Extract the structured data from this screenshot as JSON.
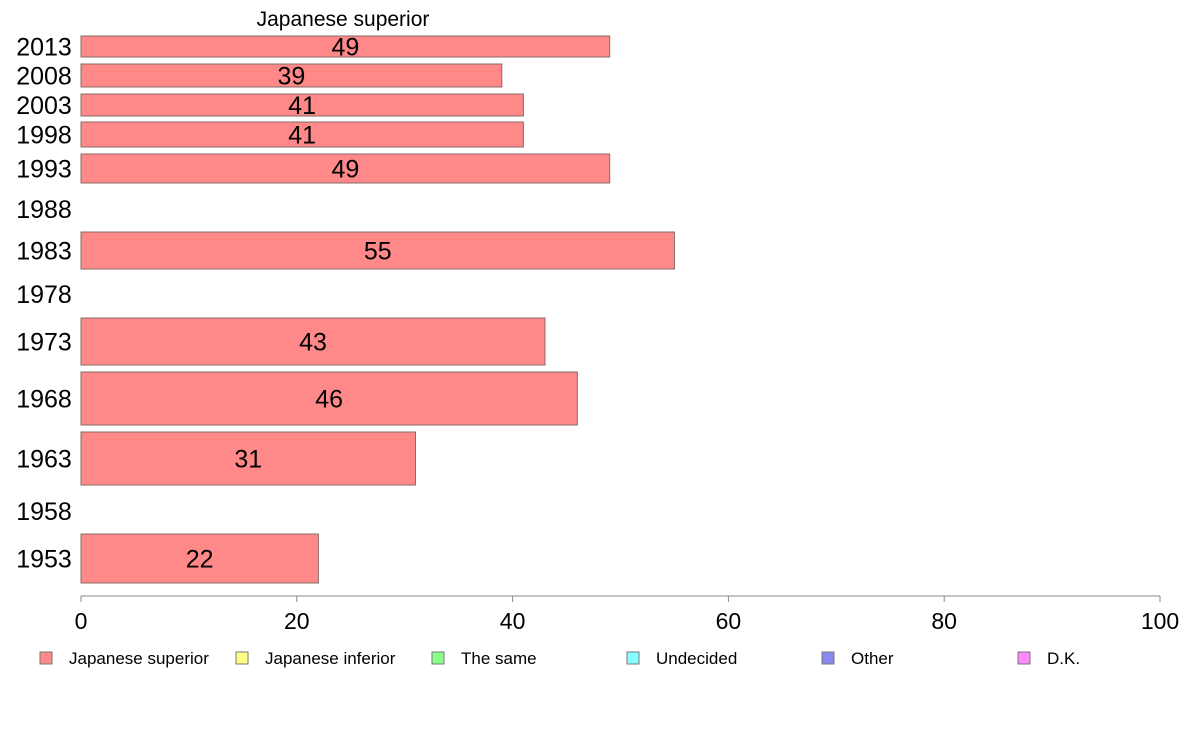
{
  "chart_data": {
    "type": "bar",
    "orientation": "horizontal",
    "title": "Japanese superior",
    "xlim": [
      0,
      100
    ],
    "x_ticks": [
      0,
      20,
      40,
      60,
      80,
      100
    ],
    "categories": [
      "2013",
      "2008",
      "2003",
      "1998",
      "1993",
      "1988",
      "1983",
      "1978",
      "1973",
      "1968",
      "1963",
      "1958",
      "1953"
    ],
    "series": [
      {
        "name": "Japanese superior",
        "color": "#ff8888",
        "values": [
          49,
          39,
          41,
          41,
          49,
          null,
          55,
          null,
          43,
          46,
          31,
          null,
          22
        ],
        "labels": [
          "49",
          "39",
          "41",
          "41",
          "49",
          null,
          "55",
          null,
          "43",
          "46",
          "31",
          null,
          "22"
        ]
      }
    ],
    "legend": [
      {
        "name": "Japanese superior",
        "color": "#ff8888"
      },
      {
        "name": "Japanese inferior",
        "color": "#ffff88"
      },
      {
        "name": "The same",
        "color": "#88ff88"
      },
      {
        "name": "Undecided",
        "color": "#88ffff"
      },
      {
        "name": "Other",
        "color": "#8888ee"
      },
      {
        "name": "D.K.",
        "color": "#ff88ff"
      }
    ],
    "legend_position": "bottom",
    "grid": false
  }
}
